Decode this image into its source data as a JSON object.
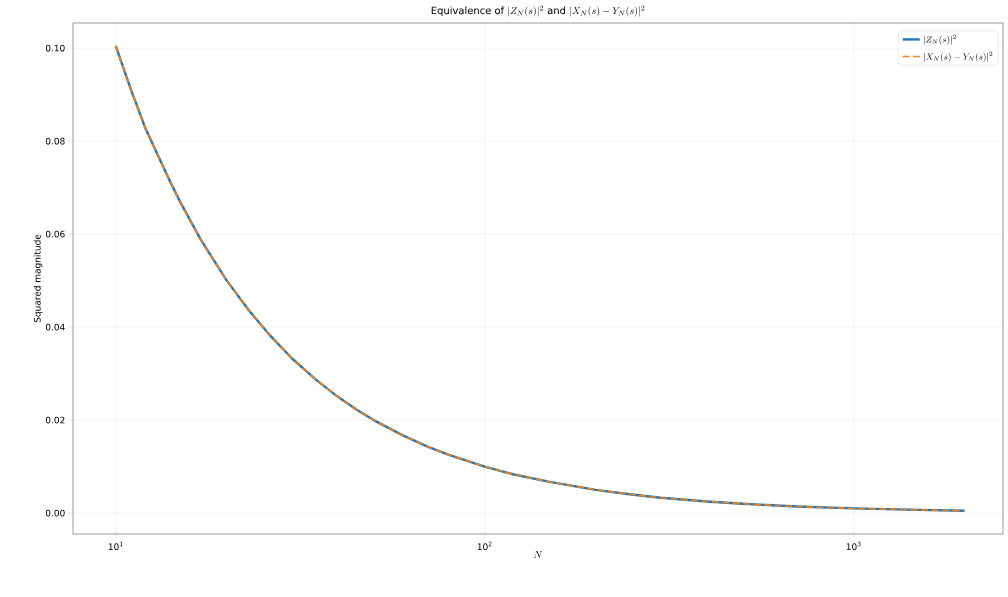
{
  "chart_data": {
    "type": "line",
    "title": "\\mbox{Equivalence of }|Z_N(s)|^2\\mbox{ and }|X_N(s)-Y_N(s)|^2",
    "xlabel": "N",
    "ylabel": "Squared magnitude",
    "log": "x",
    "grid": true,
    "legend": "top right",
    "x": [
      10,
      11,
      12,
      13,
      14,
      15,
      17,
      20,
      23,
      26,
      30,
      35,
      40,
      45,
      50,
      60,
      70,
      80,
      100,
      120,
      150,
      200,
      250,
      300,
      400,
      500,
      700,
      1000,
      1500,
      2000
    ],
    "series": [
      {
        "name": "|Z_N(s)|^2",
        "color": "#1f77b4",
        "line_style": "solid",
        "values": [
          0.1005,
          0.091,
          0.083,
          0.077,
          0.0715,
          0.0667,
          0.0588,
          0.05,
          0.0435,
          0.0385,
          0.0333,
          0.0286,
          0.025,
          0.0222,
          0.02,
          0.0167,
          0.0143,
          0.0125,
          0.01,
          0.0083,
          0.0067,
          0.005,
          0.004,
          0.0033,
          0.0025,
          0.002,
          0.0014,
          0.001,
          0.0007,
          0.0005
        ]
      },
      {
        "name": "|X_N(s)-Y_N(s)|^2",
        "color": "#ff7f0e",
        "line_style": "dashed",
        "values": [
          0.1005,
          0.091,
          0.083,
          0.077,
          0.0715,
          0.0667,
          0.0588,
          0.05,
          0.0435,
          0.0385,
          0.0333,
          0.0286,
          0.025,
          0.0222,
          0.02,
          0.0167,
          0.0143,
          0.0125,
          0.01,
          0.0083,
          0.0067,
          0.005,
          0.004,
          0.0033,
          0.0025,
          0.002,
          0.0014,
          0.001,
          0.0007,
          0.0005
        ]
      }
    ],
    "xlim": [
      7.66,
      2540
    ],
    "ylim": [
      -0.0045,
      0.1054
    ],
    "xticks": [
      {
        "value": 10,
        "label": "10$^{1}$"
      },
      {
        "value": 100,
        "label": "10$^{2}$"
      },
      {
        "value": 1000,
        "label": "10$^{3}$"
      }
    ],
    "yticks": [
      {
        "value": 0,
        "label": "0.00"
      },
      {
        "value": 0.02,
        "label": "0.02"
      },
      {
        "value": 0.04,
        "label": "0.04"
      },
      {
        "value": 0.06,
        "label": "0.06"
      },
      {
        "value": 0.08,
        "label": "0.08"
      },
      {
        "value": 0.1,
        "label": "0.10"
      }
    ]
  }
}
